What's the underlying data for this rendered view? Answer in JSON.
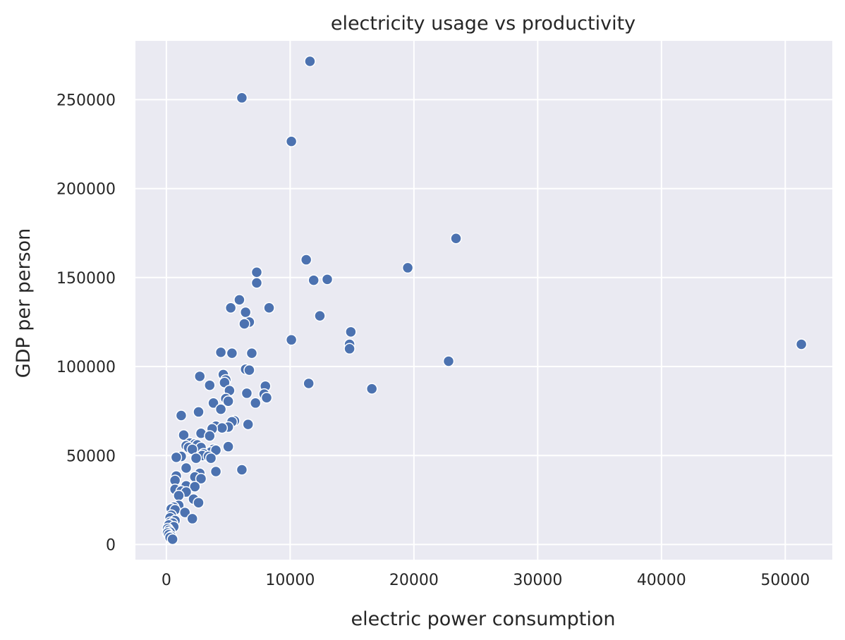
{
  "chart_data": {
    "type": "scatter",
    "title": "electricity usage vs productivity",
    "xlabel": "electric power consumption",
    "ylabel": "GDP per person",
    "xlim": [
      -2500,
      53800
    ],
    "ylim": [
      -8500,
      283000
    ],
    "xticks": [
      0,
      10000,
      20000,
      30000,
      40000,
      50000
    ],
    "xtick_labels": [
      "0",
      "10000",
      "20000",
      "30000",
      "40000",
      "50000"
    ],
    "yticks": [
      0,
      50000,
      100000,
      150000,
      200000,
      250000
    ],
    "ytick_labels": [
      "0",
      "50000",
      "100000",
      "150000",
      "200000",
      "250000"
    ],
    "grid": true,
    "background": "#eaeaf2",
    "grid_color": "#ffffff",
    "marker_color": "#4c72b0",
    "marker_edge": "#ffffff",
    "points": [
      [
        11600,
        271500
      ],
      [
        6100,
        251000
      ],
      [
        10100,
        226500
      ],
      [
        23400,
        172000
      ],
      [
        19500,
        155500
      ],
      [
        11300,
        160000
      ],
      [
        7300,
        153000
      ],
      [
        11900,
        148500
      ],
      [
        13000,
        149000
      ],
      [
        7300,
        147000
      ],
      [
        5900,
        137500
      ],
      [
        5200,
        133000
      ],
      [
        8300,
        133000
      ],
      [
        6400,
        130500
      ],
      [
        12400,
        128500
      ],
      [
        6700,
        125000
      ],
      [
        6300,
        124000
      ],
      [
        14900,
        119500
      ],
      [
        10100,
        115000
      ],
      [
        14800,
        112500
      ],
      [
        14800,
        110000
      ],
      [
        51300,
        112500
      ],
      [
        4400,
        108000
      ],
      [
        5300,
        107500
      ],
      [
        6900,
        107500
      ],
      [
        22800,
        103000
      ],
      [
        6400,
        98500
      ],
      [
        6700,
        98000
      ],
      [
        4600,
        95500
      ],
      [
        2700,
        94500
      ],
      [
        4800,
        92500
      ],
      [
        4700,
        91000
      ],
      [
        11500,
        90500
      ],
      [
        3500,
        89500
      ],
      [
        8000,
        89000
      ],
      [
        16600,
        87500
      ],
      [
        5100,
        86500
      ],
      [
        6500,
        85000
      ],
      [
        7900,
        84500
      ],
      [
        8100,
        82500
      ],
      [
        4800,
        82000
      ],
      [
        5000,
        80500
      ],
      [
        3800,
        79500
      ],
      [
        7200,
        79500
      ],
      [
        4400,
        76000
      ],
      [
        2600,
        74500
      ],
      [
        1200,
        72500
      ],
      [
        5500,
        69500
      ],
      [
        5300,
        69000
      ],
      [
        6600,
        67500
      ],
      [
        4000,
        66500
      ],
      [
        5000,
        66000
      ],
      [
        4500,
        65500
      ],
      [
        3700,
        65000
      ],
      [
        1400,
        61500
      ],
      [
        2800,
        62500
      ],
      [
        3500,
        61000
      ],
      [
        1900,
        57000
      ],
      [
        2300,
        56500
      ],
      [
        2500,
        56000
      ],
      [
        1600,
        55500
      ],
      [
        5000,
        55000
      ],
      [
        1800,
        54500
      ],
      [
        2800,
        54500
      ],
      [
        2100,
        53500
      ],
      [
        3800,
        53500
      ],
      [
        3600,
        52000
      ],
      [
        4000,
        53000
      ],
      [
        3000,
        51000
      ],
      [
        2900,
        50000
      ],
      [
        3400,
        49500
      ],
      [
        3600,
        48500
      ],
      [
        1200,
        49500
      ],
      [
        800,
        49000
      ],
      [
        2400,
        48500
      ],
      [
        6100,
        42000
      ],
      [
        1600,
        43000
      ],
      [
        4000,
        41000
      ],
      [
        2700,
        40000
      ],
      [
        800,
        38500
      ],
      [
        2300,
        38000
      ],
      [
        2800,
        37000
      ],
      [
        700,
        36000
      ],
      [
        1600,
        33000
      ],
      [
        2300,
        32500
      ],
      [
        700,
        31000
      ],
      [
        1200,
        30000
      ],
      [
        1600,
        29500
      ],
      [
        1000,
        27500
      ],
      [
        2200,
        25500
      ],
      [
        2600,
        23500
      ],
      [
        1000,
        22000
      ],
      [
        600,
        21000
      ],
      [
        400,
        20000
      ],
      [
        700,
        19500
      ],
      [
        1500,
        18000
      ],
      [
        400,
        16500
      ],
      [
        300,
        15000
      ],
      [
        2100,
        14500
      ],
      [
        700,
        13500
      ],
      [
        300,
        12500
      ],
      [
        500,
        12000
      ],
      [
        200,
        11000
      ],
      [
        600,
        10000
      ],
      [
        100,
        9000
      ],
      [
        200,
        8000
      ],
      [
        300,
        7000
      ],
      [
        100,
        6500
      ],
      [
        200,
        5500
      ],
      [
        400,
        4500
      ],
      [
        300,
        4000
      ],
      [
        500,
        3000
      ]
    ]
  }
}
